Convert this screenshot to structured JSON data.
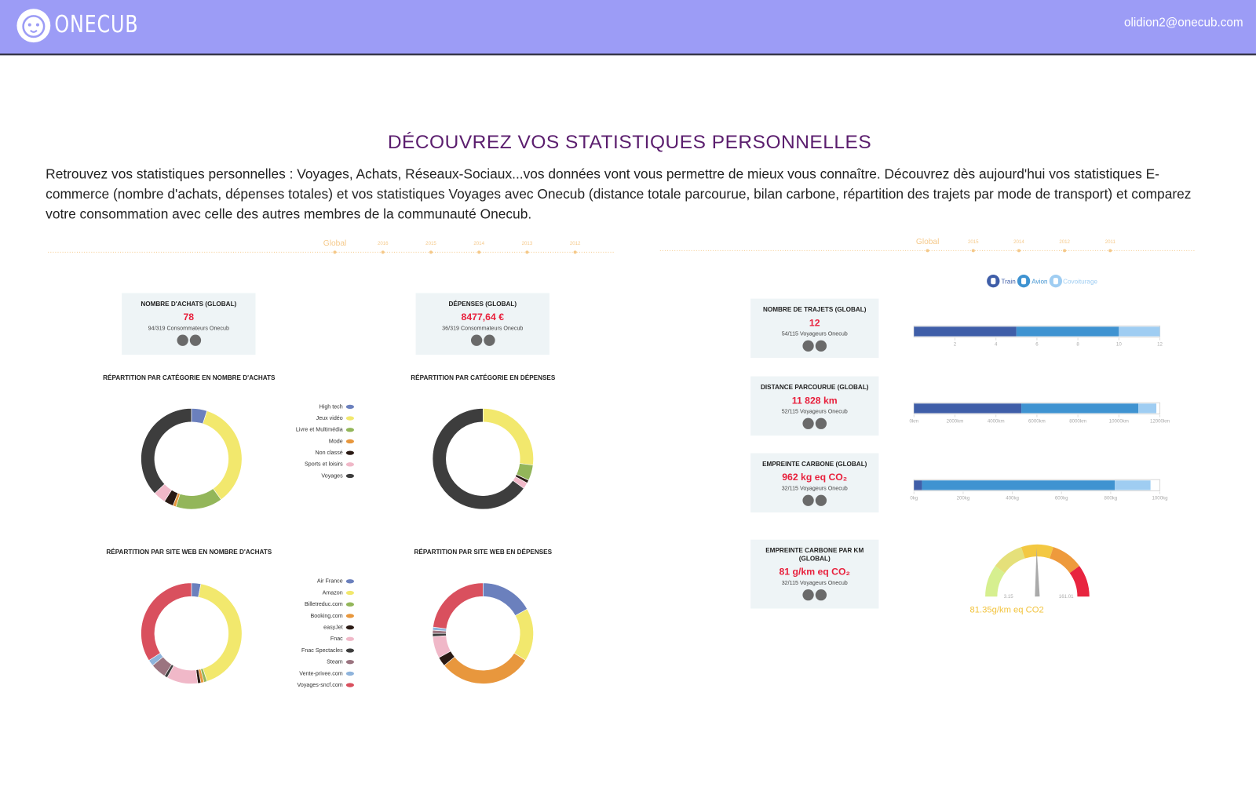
{
  "header": {
    "logo": "ONECUB",
    "email": "olidion2@onecub.com"
  },
  "title": "DÉCOUVREZ VOS STATISTIQUES PERSONNELLES",
  "intro": "Retrouvez vos statistiques personnelles : Voyages, Achats, Réseaux-Sociaux...vos données vont vous permettre de mieux vous connaître. Découvrez dès aujourd'hui vos statistiques E-commerce (nombre d'achats, dépenses totales) et vos statistiques Voyages avec Onecub (distance totale parcourue, bilan carbone, répartition des trajets par mode de transport) et comparez votre consommation avec celle des autres membres de la communauté Onecub.",
  "ecommerce": {
    "timeline": [
      "Global",
      "2016",
      "2015",
      "2014",
      "2013",
      "2012"
    ],
    "cards": [
      {
        "title": "NOMBRE D'ACHATS (GLOBAL)",
        "value": "78",
        "rank": "94/319 Consommateurs Onecub"
      },
      {
        "title": "DÉPENSES (GLOBAL)",
        "value": "8477,64 €",
        "rank": "36/319 Consommateurs Onecub"
      }
    ],
    "category_charts": {
      "categories": [
        "High tech",
        "Jeux vidéo",
        "Livre et Multimédia",
        "Mode",
        "Non classé",
        "Sports et loisirs",
        "Voyages"
      ],
      "colors": [
        "#6b80bd",
        "#f2e86d",
        "#93b65a",
        "#e8973d",
        "#2a1a14",
        "#f0b8c8",
        "#3d3d3d"
      ],
      "donuts": [
        {
          "title": "RÉPARTITION PAR CATÉGORIE EN NOMBRE D'ACHATS",
          "values": [
            5,
            35,
            15,
            1,
            3,
            4,
            37
          ]
        },
        {
          "title": "RÉPARTITION PAR CATÉGORIE EN DÉPENSES",
          "values": [
            0,
            27,
            5,
            0,
            1,
            2,
            65
          ]
        }
      ]
    },
    "site_charts": {
      "categories": [
        "Air France",
        "Amazon",
        "Billetreduc.com",
        "Booking.com",
        "easyJet",
        "Fnac",
        "Fnac Spectacles",
        "Steam",
        "Vente-privee.com",
        "Voyages-sncf.com"
      ],
      "colors": [
        "#6b80bd",
        "#f2e86d",
        "#93b65a",
        "#e8973d",
        "#2a1a14",
        "#f0b8c8",
        "#3d3d3d",
        "#9b7480",
        "#8fb4dc",
        "#d9505e"
      ],
      "donuts": [
        {
          "title": "RÉPARTITION PAR SITE WEB EN NOMBRE D'ACHATS",
          "values": [
            3,
            42,
            1,
            1,
            1,
            10,
            1,
            5,
            2,
            34
          ]
        },
        {
          "title": "RÉPARTITION PAR SITE WEB EN DÉPENSES",
          "values": [
            17,
            17,
            0,
            30,
            3,
            7,
            1,
            1,
            1,
            23
          ]
        }
      ]
    }
  },
  "transport": {
    "timeline": [
      "Global",
      "2015",
      "2014",
      "2012",
      "2011"
    ],
    "legend": [
      "Train",
      "Avion",
      "Covoiturage"
    ],
    "colors": [
      "#3f5ea8",
      "#3f93d1",
      "#9fcdf2"
    ],
    "cards": [
      {
        "title": "NOMBRE DE TRAJETS (GLOBAL)",
        "value": "12",
        "rank": "54/115 Voyageurs Onecub"
      },
      {
        "title": "DISTANCE PARCOURUE (GLOBAL)",
        "value": "11 828 km",
        "rank": "52/115 Voyageurs Onecub"
      },
      {
        "title": "EMPREINTE CARBONE (GLOBAL)",
        "value": "962 kg eq CO₂",
        "rank": "32/115 Voyageurs Onecub"
      },
      {
        "title": "EMPREINTE CARBONE PAR KM (GLOBAL)",
        "value": "81 g/km eq CO₂",
        "rank": "32/115 Voyageurs Onecub"
      }
    ],
    "bars": [
      {
        "values": [
          5,
          5,
          2
        ],
        "xlim": [
          0,
          12
        ],
        "xticks": [
          2,
          4,
          6,
          8,
          10,
          12
        ]
      },
      {
        "values": [
          5240,
          5710,
          878
        ],
        "xlim": [
          0,
          12000
        ],
        "xticks": [
          {
            "value": 0,
            "label": "0km"
          },
          {
            "value": 2000,
            "label": "2000km"
          },
          {
            "value": 4000,
            "label": "4000km"
          },
          {
            "value": 6000,
            "label": "6000km"
          },
          {
            "value": 8000,
            "label": "8000km"
          },
          {
            "value": 10000,
            "label": "10000km"
          },
          {
            "value": 12000,
            "label": "12000km"
          }
        ]
      },
      {
        "values": [
          33,
          784,
          145
        ],
        "xlim": [
          0,
          1000
        ],
        "xticks": [
          {
            "value": 0,
            "label": "0kg"
          },
          {
            "value": 200,
            "label": "200kg"
          },
          {
            "value": 400,
            "label": "400kg"
          },
          {
            "value": 600,
            "label": "600kg"
          },
          {
            "value": 800,
            "label": "800kg"
          },
          {
            "value": 1000,
            "label": "1000kg"
          }
        ]
      }
    ],
    "gauge": {
      "value": 81.35,
      "value_label": "81.35g/km eq CO2",
      "lim": [
        3.15,
        161.01
      ]
    }
  }
}
